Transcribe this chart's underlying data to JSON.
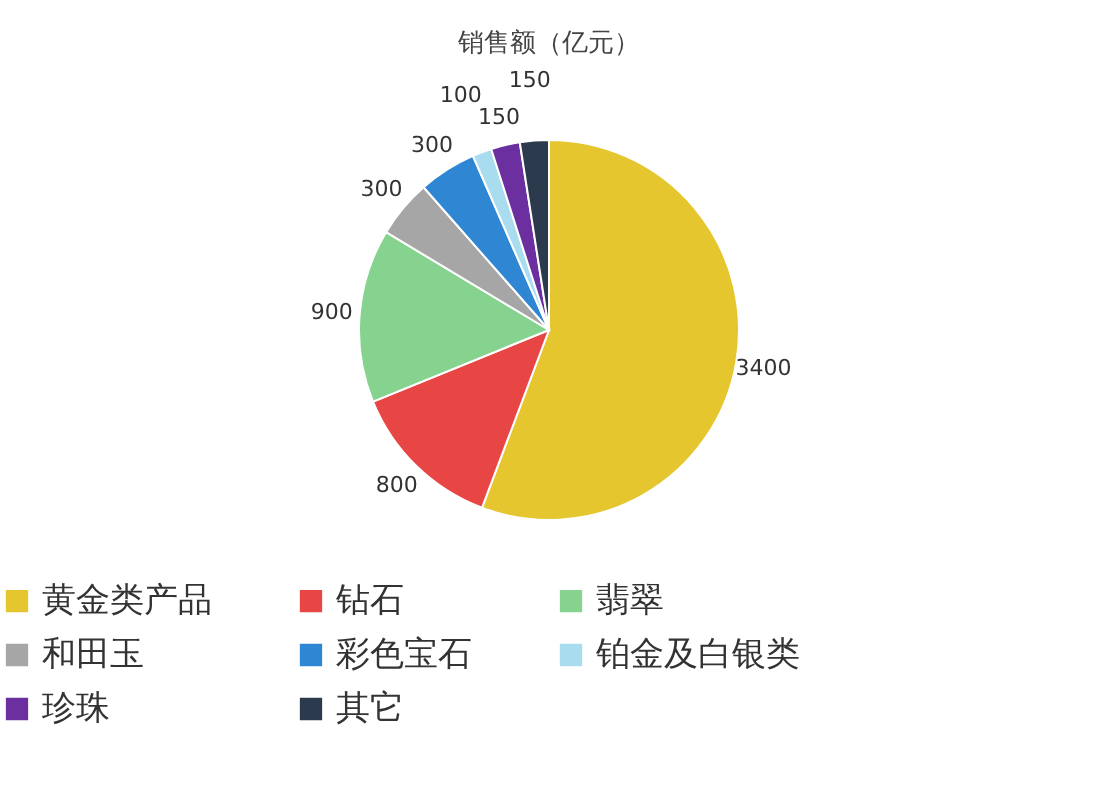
{
  "chart_data": {
    "type": "pie",
    "title": "销售额（亿元）",
    "categories": [
      "黄金类产品",
      "钻石",
      "翡翠",
      "和田玉",
      "彩色宝石",
      "铂金及白银类",
      "珍珠",
      "其它"
    ],
    "values": [
      3400,
      800,
      900,
      300,
      300,
      100,
      150,
      150
    ],
    "colors": [
      "#e5c62e",
      "#e84545",
      "#86d38f",
      "#a6a6a6",
      "#2f86d3",
      "#a9dcef",
      "#6b2fa0",
      "#2c3a4d"
    ],
    "data_labels": true,
    "legend": "bottom"
  }
}
